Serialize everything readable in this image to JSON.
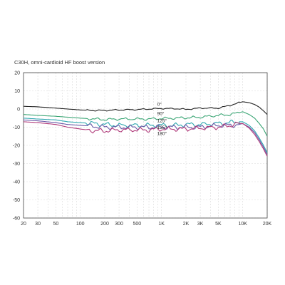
{
  "chart_data": {
    "type": "line",
    "title": "C30H, omni-cardioid HF boost version",
    "xlabel": "",
    "ylabel": "",
    "x_scale": "log",
    "xlim": [
      20,
      20000
    ],
    "ylim": [
      -60,
      20
    ],
    "y_ticks": [
      20,
      10,
      0,
      -10,
      -20,
      -30,
      -40,
      -50,
      -60
    ],
    "x_ticks": [
      {
        "value": 20,
        "label": "20"
      },
      {
        "value": 30,
        "label": "30"
      },
      {
        "value": 50,
        "label": "50"
      },
      {
        "value": 100,
        "label": "100"
      },
      {
        "value": 200,
        "label": "200"
      },
      {
        "value": 300,
        "label": "300"
      },
      {
        "value": 500,
        "label": "500"
      },
      {
        "value": 1000,
        "label": "1K"
      },
      {
        "value": 2000,
        "label": "2K"
      },
      {
        "value": 3000,
        "label": "3K"
      },
      {
        "value": 5000,
        "label": "5K"
      },
      {
        "value": 10000,
        "label": "10K"
      },
      {
        "value": 20000,
        "label": "20K"
      }
    ],
    "grid": true,
    "x": [
      20,
      30,
      50,
      70,
      100,
      150,
      200,
      300,
      500,
      700,
      1000,
      1500,
      2000,
      3000,
      5000,
      7000,
      9000,
      10000,
      12000,
      14000,
      16000,
      18000,
      20000
    ],
    "series": [
      {
        "name": "0°",
        "color": "#222222",
        "values": [
          1.5,
          1.2,
          0.5,
          0,
          -0.5,
          -0.8,
          -0.8,
          -0.5,
          -0.3,
          0,
          0.3,
          0.2,
          -0.2,
          0.5,
          0.5,
          2.0,
          3.5,
          4.0,
          3.5,
          2.5,
          1.0,
          -1.0,
          -3.0
        ]
      },
      {
        "name": "90°",
        "color": "#3aa574",
        "values": [
          -3,
          -3.5,
          -4,
          -4.5,
          -5,
          -5.5,
          -5.8,
          -5.5,
          -5.5,
          -5.5,
          -5.2,
          -5.0,
          -4.8,
          -4.5,
          -3.5,
          -3.0,
          -2.0,
          -1.5,
          -3.0,
          -5.0,
          -8.0,
          -11.0,
          -15.0
        ]
      },
      {
        "name": "125°",
        "color": "#2fa8b0",
        "values": [
          -5,
          -5.5,
          -6,
          -7,
          -7.5,
          -8,
          -8.5,
          -9,
          -9,
          -9,
          -9,
          -9,
          -8.5,
          -8.5,
          -8,
          -7.5,
          -7.0,
          -7.0,
          -9.0,
          -12.0,
          -16.0,
          -20.0,
          -24.0
        ]
      },
      {
        "name": "135°",
        "color": "#6a5aa8",
        "values": [
          -6,
          -6.5,
          -7.5,
          -8.5,
          -9,
          -9.5,
          -10,
          -10,
          -10,
          -10,
          -10,
          -10,
          -10,
          -10,
          -9,
          -9,
          -8.5,
          -8.0,
          -10.0,
          -13.0,
          -17.0,
          -21.0,
          -25.0
        ]
      },
      {
        "name": "180°",
        "color": "#b03a7a",
        "values": [
          -7,
          -7.5,
          -8.5,
          -10,
          -11,
          -12,
          -12,
          -11.5,
          -11.5,
          -11.5,
          -11,
          -11,
          -11,
          -10.5,
          -10,
          -9,
          -8,
          -8.0,
          -10.5,
          -14.0,
          -18.0,
          -22.0,
          -26.0
        ]
      }
    ]
  }
}
